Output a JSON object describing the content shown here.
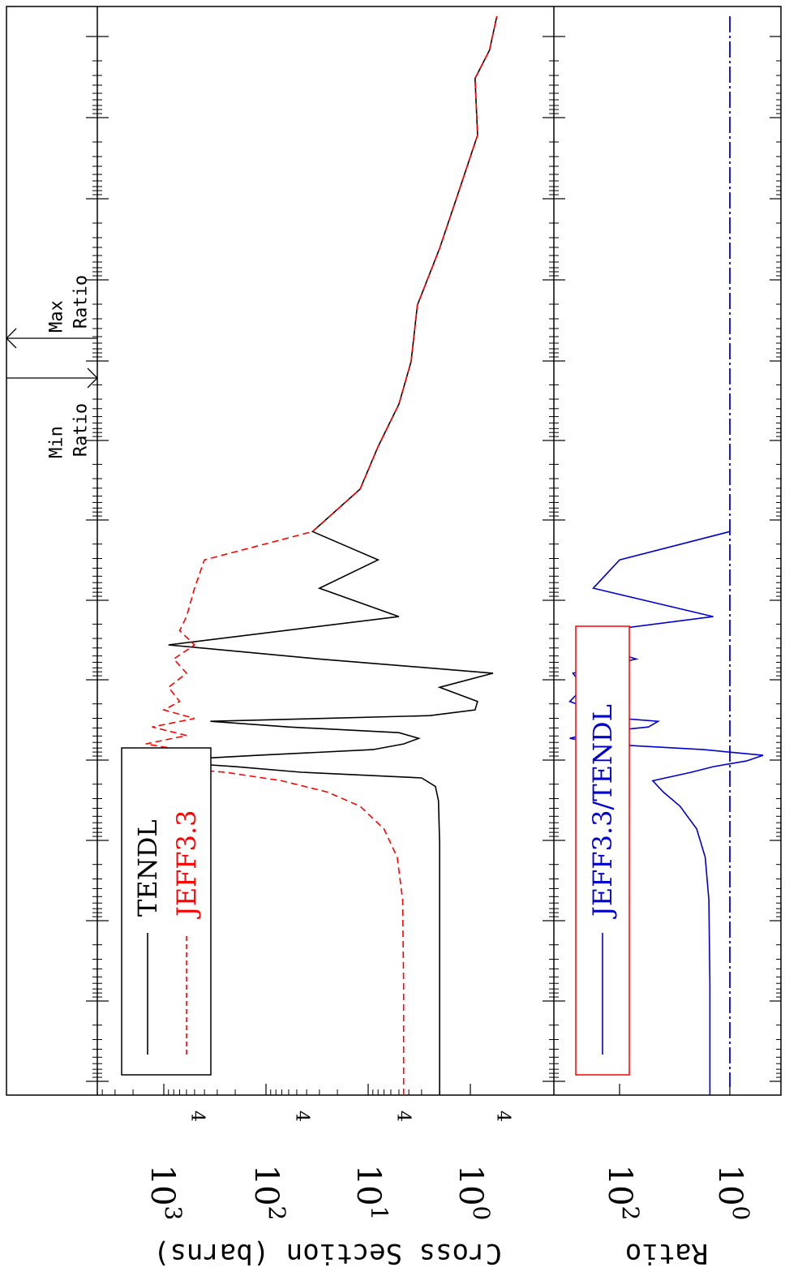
{
  "chart_data": [
    {
      "type": "line",
      "title": "",
      "ylabel": "Cross Section (barns)",
      "xscale": "log",
      "yscale": "log",
      "ylim": [
        0.6,
        4000
      ],
      "y_tick_labels": [
        {
          "base": "10",
          "exp": "0",
          "value": 1
        },
        {
          "base": "10",
          "exp": "1",
          "value": 10
        },
        {
          "base": "10",
          "exp": "2",
          "value": 100
        },
        {
          "base": "10",
          "exp": "3",
          "value": 1000
        }
      ],
      "y_minor_labels": [
        "4",
        "4",
        "4",
        "4"
      ],
      "legend": {
        "placement": "bottom-left",
        "border_color": "#000000"
      },
      "series": [
        {
          "name": "TENDL",
          "color": "#000000",
          "dash": "solid",
          "x": [
            1,
            40,
            90,
            105,
            110,
            113,
            115,
            117,
            119,
            121,
            123,
            125,
            127,
            129,
            131,
            133,
            135,
            137,
            140,
            145,
            150,
            155,
            160,
            170,
            180,
            190,
            200,
            215,
            230,
            245,
            260,
            280,
            300,
            320,
            340,
            360,
            370,
            382
          ],
          "y": [
            2.0,
            2.0,
            2.0,
            2.05,
            2.2,
            3.0,
            45,
            200,
            1300,
            120,
            9,
            4.5,
            3.2,
            5,
            60,
            350,
            2.5,
            0.9,
            0.85,
            2.0,
            0.6,
            30,
            900,
            5,
            30,
            8,
            35,
            12,
            8,
            5,
            3.8,
            3.3,
            2.0,
            1.3,
            0.85,
            0.9,
            0.65,
            0.55
          ]
        },
        {
          "name": "JEFF3.3",
          "color": "#ff0000",
          "dash": "dashed",
          "x": [
            1,
            40,
            70,
            85,
            95,
            103,
            108,
            112,
            115,
            117,
            119,
            121,
            123,
            125,
            128,
            131,
            134,
            137,
            140,
            145,
            150,
            155,
            160,
            165,
            170,
            180,
            190,
            200,
            215,
            230,
            245,
            260,
            280,
            300,
            320,
            340,
            360,
            370,
            382
          ],
          "y": [
            4.5,
            4.5,
            4.6,
            5.2,
            7.0,
            12,
            25,
            70,
            250,
            1200,
            800,
            1800,
            700,
            1500,
            600,
            1300,
            500,
            1000,
            700,
            900,
            600,
            800,
            500,
            700,
            600,
            500,
            400,
            35,
            12,
            8,
            5,
            3.8,
            3.3,
            2.0,
            1.3,
            0.85,
            0.9,
            0.65,
            0.55
          ]
        }
      ],
      "annotations": [
        {
          "label_lines": [
            "Max",
            "Ratio"
          ],
          "arrow": "up"
        },
        {
          "label_lines": [
            "Min",
            "Ratio"
          ],
          "arrow": "down"
        }
      ]
    },
    {
      "type": "line",
      "title": "",
      "ylabel": "Ratio",
      "xscale": "log",
      "yscale": "log",
      "y_tick_labels": [
        {
          "base": "10",
          "exp": "0",
          "value": 1
        },
        {
          "base": "10",
          "exp": "2",
          "value": 100
        }
      ],
      "legend": {
        "placement": "bottom-left",
        "border_color": "#ff0000"
      },
      "reference_line": {
        "value": 1,
        "color": "#0000cc",
        "dash": "dash-dot"
      },
      "series": [
        {
          "name": "JEFF3.3/TENDL",
          "color": "#0000cc",
          "dash": "solid",
          "x": [
            1,
            40,
            70,
            85,
            95,
            103,
            108,
            112,
            115,
            117,
            119,
            121,
            123,
            125,
            127,
            129,
            131,
            133,
            135,
            137,
            140,
            145,
            150,
            155,
            160,
            165,
            170,
            180,
            190,
            200
          ],
          "y": [
            2.3,
            2.3,
            2.4,
            2.8,
            4,
            8,
            16,
            25,
            5,
            2,
            0.5,
            0.25,
            3,
            200,
            800,
            300,
            30,
            20,
            400,
            300,
            800,
            450,
            700,
            50,
            350,
            200,
            2,
            300,
            100,
            1.0
          ]
        }
      ]
    }
  ]
}
